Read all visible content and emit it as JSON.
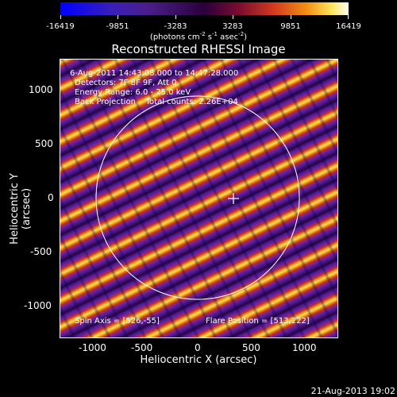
{
  "colorbar": {
    "ticks": [
      "-16419",
      "-9851",
      "-3283",
      "3283",
      "9851",
      "16419"
    ],
    "units_prefix": "(photons cm",
    "units_sup1": "-2",
    "units_mid": " s",
    "units_sup2": "-1",
    "units_mid2": " asec",
    "units_sup3": "-2",
    "units_suffix": ")"
  },
  "title": "Reconstructed RHESSI Image",
  "info": {
    "line1": "6-Aug-2011 14:43:08.000 to 14:47:28.000",
    "line2": "Detectors: 7F 8F 9F, Att 0",
    "line3": "Energy Range: 6.0 - 25.0 keV",
    "line4": "Back Projection    Total counts: 2.26E+04",
    "spin_axis": "Spin Axis = [526,-55]",
    "flare_position": "Flare Position = [513,222]"
  },
  "axes": {
    "x_label": "Heliocentric X (arcsec)",
    "y_label": "Heliocentric Y (arcsec)",
    "x_ticks": [
      "-1000",
      "-500",
      "0",
      "500",
      "1000"
    ],
    "y_ticks": [
      "1000",
      "500",
      "0",
      "-500",
      "-1000"
    ]
  },
  "timestamp": "21-Aug-2013 19:02"
}
